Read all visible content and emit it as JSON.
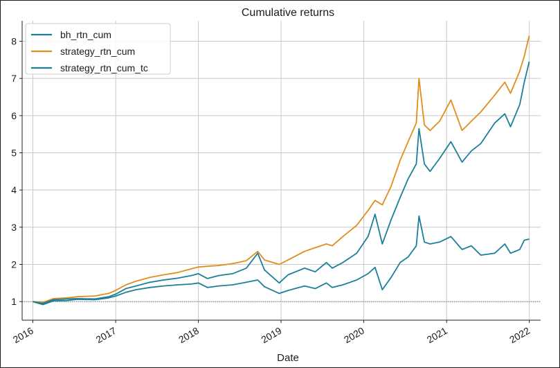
{
  "chart_data": {
    "type": "line",
    "title": "Cumulative returns",
    "xlabel": "Date",
    "ylabel": "",
    "xlim": [
      "2015-11-15",
      "2022-02-20"
    ],
    "ylim": [
      0.5,
      8.55
    ],
    "x_ticks": [
      "2016",
      "2017",
      "2018",
      "2019",
      "2020",
      "2021",
      "2022"
    ],
    "y_ticks": [
      "1",
      "2",
      "3",
      "4",
      "5",
      "6",
      "7",
      "8"
    ],
    "grid": true,
    "legend_position": "top-left",
    "series": [
      {
        "name": "bh_rtn_cum",
        "color": "#1a7f99",
        "points": [
          [
            "2016-01-01",
            1.0
          ],
          [
            "2016-02-15",
            0.92
          ],
          [
            "2016-04-01",
            1.02
          ],
          [
            "2016-06-01",
            1.03
          ],
          [
            "2016-07-15",
            1.06
          ],
          [
            "2016-10-01",
            1.05
          ],
          [
            "2016-12-01",
            1.1
          ],
          [
            "2017-01-01",
            1.15
          ],
          [
            "2017-02-15",
            1.25
          ],
          [
            "2017-04-01",
            1.32
          ],
          [
            "2017-06-01",
            1.38
          ],
          [
            "2017-08-01",
            1.42
          ],
          [
            "2017-10-01",
            1.45
          ],
          [
            "2017-12-01",
            1.47
          ],
          [
            "2018-01-01",
            1.5
          ],
          [
            "2018-02-10",
            1.38
          ],
          [
            "2018-04-01",
            1.42
          ],
          [
            "2018-06-01",
            1.45
          ],
          [
            "2018-08-01",
            1.52
          ],
          [
            "2018-09-20",
            1.58
          ],
          [
            "2018-10-20",
            1.4
          ],
          [
            "2018-12-24",
            1.22
          ],
          [
            "2019-02-01",
            1.3
          ],
          [
            "2019-04-15",
            1.42
          ],
          [
            "2019-06-01",
            1.35
          ],
          [
            "2019-07-20",
            1.5
          ],
          [
            "2019-08-15",
            1.38
          ],
          [
            "2019-10-01",
            1.45
          ],
          [
            "2019-12-01",
            1.58
          ],
          [
            "2020-01-20",
            1.75
          ],
          [
            "2020-02-20",
            1.92
          ],
          [
            "2020-03-23",
            1.32
          ],
          [
            "2020-05-01",
            1.65
          ],
          [
            "2020-06-10",
            2.05
          ],
          [
            "2020-07-15",
            2.2
          ],
          [
            "2020-08-20",
            2.5
          ],
          [
            "2020-09-01",
            3.3
          ],
          [
            "2020-09-25",
            2.6
          ],
          [
            "2020-10-20",
            2.55
          ],
          [
            "2020-12-01",
            2.6
          ],
          [
            "2021-01-20",
            2.75
          ],
          [
            "2021-03-10",
            2.4
          ],
          [
            "2021-04-20",
            2.5
          ],
          [
            "2021-06-01",
            2.25
          ],
          [
            "2021-08-01",
            2.3
          ],
          [
            "2021-09-15",
            2.55
          ],
          [
            "2021-10-10",
            2.3
          ],
          [
            "2021-11-20",
            2.4
          ],
          [
            "2021-12-10",
            2.65
          ],
          [
            "2022-01-01",
            2.68
          ]
        ]
      },
      {
        "name": "strategy_rtn_cum",
        "color": "#e08d1c",
        "points": [
          [
            "2016-01-01",
            1.0
          ],
          [
            "2016-02-15",
            0.98
          ],
          [
            "2016-04-01",
            1.08
          ],
          [
            "2016-06-01",
            1.1
          ],
          [
            "2016-07-15",
            1.13
          ],
          [
            "2016-10-01",
            1.15
          ],
          [
            "2016-12-01",
            1.22
          ],
          [
            "2017-01-01",
            1.3
          ],
          [
            "2017-02-15",
            1.45
          ],
          [
            "2017-04-01",
            1.55
          ],
          [
            "2017-06-01",
            1.65
          ],
          [
            "2017-08-01",
            1.72
          ],
          [
            "2017-10-01",
            1.78
          ],
          [
            "2017-12-01",
            1.88
          ],
          [
            "2018-01-01",
            1.93
          ],
          [
            "2018-02-10",
            1.95
          ],
          [
            "2018-04-01",
            1.97
          ],
          [
            "2018-06-01",
            2.02
          ],
          [
            "2018-08-01",
            2.1
          ],
          [
            "2018-09-20",
            2.35
          ],
          [
            "2018-10-20",
            2.12
          ],
          [
            "2018-12-24",
            2.0
          ],
          [
            "2019-02-01",
            2.12
          ],
          [
            "2019-04-15",
            2.35
          ],
          [
            "2019-06-01",
            2.45
          ],
          [
            "2019-07-20",
            2.55
          ],
          [
            "2019-08-15",
            2.5
          ],
          [
            "2019-10-01",
            2.75
          ],
          [
            "2019-12-01",
            3.05
          ],
          [
            "2020-01-20",
            3.45
          ],
          [
            "2020-02-20",
            3.72
          ],
          [
            "2020-03-23",
            3.6
          ],
          [
            "2020-05-01",
            4.1
          ],
          [
            "2020-06-10",
            4.8
          ],
          [
            "2020-07-15",
            5.3
          ],
          [
            "2020-08-20",
            5.8
          ],
          [
            "2020-09-01",
            7.0
          ],
          [
            "2020-09-25",
            5.75
          ],
          [
            "2020-10-20",
            5.6
          ],
          [
            "2020-12-01",
            5.85
          ],
          [
            "2021-01-20",
            6.42
          ],
          [
            "2021-03-10",
            5.6
          ],
          [
            "2021-04-20",
            5.85
          ],
          [
            "2021-06-01",
            6.1
          ],
          [
            "2021-08-01",
            6.55
          ],
          [
            "2021-09-15",
            6.9
          ],
          [
            "2021-10-10",
            6.6
          ],
          [
            "2021-11-20",
            7.2
          ],
          [
            "2021-12-10",
            7.6
          ],
          [
            "2022-01-01",
            8.15
          ]
        ]
      },
      {
        "name": "strategy_rtn_cum_tc",
        "color": "#1a7f99",
        "points": [
          [
            "2016-01-01",
            1.0
          ],
          [
            "2016-02-15",
            0.95
          ],
          [
            "2016-04-01",
            1.05
          ],
          [
            "2016-06-01",
            1.07
          ],
          [
            "2016-07-15",
            1.08
          ],
          [
            "2016-10-01",
            1.07
          ],
          [
            "2016-12-01",
            1.13
          ],
          [
            "2017-01-01",
            1.2
          ],
          [
            "2017-02-15",
            1.35
          ],
          [
            "2017-04-01",
            1.42
          ],
          [
            "2017-06-01",
            1.52
          ],
          [
            "2017-08-01",
            1.58
          ],
          [
            "2017-10-01",
            1.63
          ],
          [
            "2017-12-01",
            1.7
          ],
          [
            "2018-01-01",
            1.75
          ],
          [
            "2018-02-10",
            1.62
          ],
          [
            "2018-04-01",
            1.7
          ],
          [
            "2018-06-01",
            1.75
          ],
          [
            "2018-08-01",
            1.9
          ],
          [
            "2018-09-20",
            2.3
          ],
          [
            "2018-10-20",
            1.85
          ],
          [
            "2018-12-24",
            1.5
          ],
          [
            "2019-02-01",
            1.72
          ],
          [
            "2019-04-15",
            1.9
          ],
          [
            "2019-06-01",
            1.8
          ],
          [
            "2019-07-20",
            2.05
          ],
          [
            "2019-08-15",
            1.9
          ],
          [
            "2019-10-01",
            2.05
          ],
          [
            "2019-12-01",
            2.3
          ],
          [
            "2020-01-20",
            2.75
          ],
          [
            "2020-02-20",
            3.35
          ],
          [
            "2020-03-23",
            2.55
          ],
          [
            "2020-05-01",
            3.2
          ],
          [
            "2020-06-10",
            3.8
          ],
          [
            "2020-07-15",
            4.3
          ],
          [
            "2020-08-20",
            4.7
          ],
          [
            "2020-09-01",
            5.65
          ],
          [
            "2020-09-25",
            4.7
          ],
          [
            "2020-10-20",
            4.5
          ],
          [
            "2020-12-01",
            4.85
          ],
          [
            "2021-01-20",
            5.3
          ],
          [
            "2021-03-10",
            4.75
          ],
          [
            "2021-04-20",
            5.05
          ],
          [
            "2021-06-01",
            5.25
          ],
          [
            "2021-08-01",
            5.8
          ],
          [
            "2021-09-15",
            6.05
          ],
          [
            "2021-10-10",
            5.7
          ],
          [
            "2021-11-20",
            6.3
          ],
          [
            "2021-12-10",
            6.9
          ],
          [
            "2022-01-01",
            7.45
          ]
        ]
      }
    ]
  }
}
